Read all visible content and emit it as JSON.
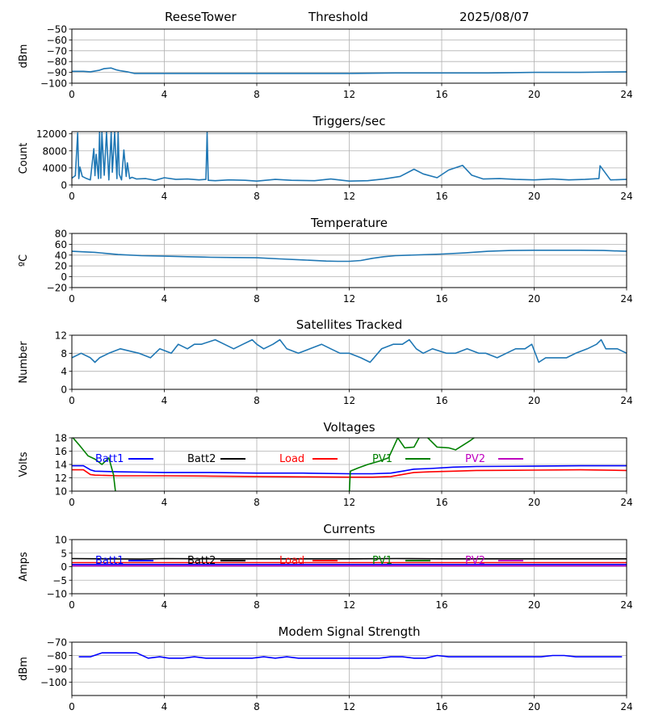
{
  "header": {
    "station": "ReeseTower",
    "label": "Threshold",
    "date": "2025/08/07"
  },
  "colors": {
    "default": "#1f77b4",
    "grid": "#b0b0b0",
    "batt1": "#0000ff",
    "batt2": "#000000",
    "load": "#ff0000",
    "pv1": "#008000",
    "pv2": "#bf00bf"
  },
  "chart_data": [
    {
      "type": "line",
      "title": "",
      "ylabel": "dBm",
      "xlim": [
        0,
        24
      ],
      "ylim": [
        -100,
        -50
      ],
      "xticks": [
        "0",
        "4",
        "8",
        "12",
        "16",
        "20",
        "24"
      ],
      "yticks": [
        "−50",
        "−60",
        "−70",
        "−80",
        "−90",
        "−100"
      ],
      "grid": true,
      "series": [
        {
          "x": [
            0,
            0.5,
            0.8,
            1.2,
            1.4,
            1.7,
            1.9,
            2.1,
            2.4,
            2.7,
            3,
            4,
            6,
            8,
            10,
            12,
            14,
            16,
            18,
            20,
            22,
            24
          ],
          "y": [
            -89,
            -89,
            -89.5,
            -88,
            -86.5,
            -86,
            -87.5,
            -88.5,
            -89.5,
            -91,
            -91,
            -91,
            -91,
            -91,
            -91,
            -91,
            -90.5,
            -90.5,
            -90.5,
            -90,
            -90,
            -89.5
          ]
        }
      ]
    },
    {
      "type": "line",
      "title": "Triggers/sec",
      "ylabel": "Count",
      "xlim": [
        0,
        24
      ],
      "ylim": [
        0,
        12500
      ],
      "xticks": [
        "0",
        "4",
        "8",
        "12",
        "16",
        "20",
        "24"
      ],
      "yticks": [
        "0",
        "4000",
        "8000",
        "12000"
      ],
      "grid": true,
      "series": [
        {
          "x": [
            0,
            0.15,
            0.25,
            0.3,
            0.35,
            0.45,
            0.6,
            0.8,
            0.95,
            1.0,
            1.05,
            1.15,
            1.2,
            1.25,
            1.3,
            1.4,
            1.5,
            1.6,
            1.7,
            1.75,
            1.85,
            1.95,
            2.0,
            2.05,
            2.15,
            2.25,
            2.35,
            2.4,
            2.5,
            2.6,
            2.8,
            3.2,
            3.6,
            4.0,
            4.5,
            5.0,
            5.5,
            5.8,
            5.85,
            5.9,
            6.2,
            6.8,
            7.5,
            8.0,
            8.8,
            9.5,
            10.5,
            11.2,
            12.0,
            12.8,
            13.5,
            14.2,
            14.8,
            15.2,
            15.8,
            16.3,
            16.9,
            17.3,
            17.8,
            18.5,
            19.2,
            20.0,
            20.8,
            21.5,
            22.2,
            22.8,
            22.85,
            23.3,
            24.0
          ],
          "y": [
            1600,
            2200,
            12200,
            1500,
            4200,
            2000,
            1600,
            1200,
            8500,
            2200,
            7200,
            1500,
            12300,
            1600,
            12300,
            2300,
            12300,
            1200,
            12300,
            3000,
            12300,
            1500,
            12300,
            2500,
            1200,
            8200,
            2000,
            5200,
            1500,
            1800,
            1400,
            1500,
            1100,
            1700,
            1300,
            1400,
            1200,
            1300,
            12300,
            1100,
            1000,
            1200,
            1100,
            900,
            1300,
            1100,
            1000,
            1400,
            900,
            1000,
            1400,
            2000,
            3700,
            2600,
            1700,
            3500,
            4600,
            2300,
            1400,
            1500,
            1300,
            1200,
            1400,
            1200,
            1300,
            1500,
            4500,
            1200,
            1300
          ]
        }
      ]
    },
    {
      "type": "line",
      "title": "Temperature",
      "ylabel": "ºC",
      "xlim": [
        0,
        24
      ],
      "ylim": [
        -20,
        80
      ],
      "xticks": [
        "0",
        "4",
        "8",
        "12",
        "16",
        "20",
        "24"
      ],
      "yticks": [
        "−20",
        "0",
        "20",
        "40",
        "60",
        "80"
      ],
      "grid": true,
      "series": [
        {
          "x": [
            0,
            1,
            2,
            3,
            4,
            5,
            6,
            7,
            8,
            9,
            10,
            11,
            11.5,
            12,
            12.5,
            13,
            13.5,
            14,
            15,
            16,
            17,
            18,
            19,
            20,
            21,
            22,
            23,
            24
          ],
          "y": [
            47,
            45,
            41,
            39,
            38,
            37,
            36,
            35.5,
            35,
            33,
            31,
            29,
            28.5,
            28.5,
            30,
            34,
            37,
            39,
            40.5,
            42,
            44,
            47,
            48.5,
            49,
            49,
            49,
            48.5,
            47
          ]
        }
      ]
    },
    {
      "type": "line",
      "title": "Satellites Tracked",
      "ylabel": "Number",
      "xlim": [
        0,
        24
      ],
      "ylim": [
        0,
        12
      ],
      "xticks": [
        "0",
        "4",
        "8",
        "12",
        "16",
        "20",
        "24"
      ],
      "yticks": [
        "0",
        "4",
        "8",
        "12"
      ],
      "grid": true,
      "series": [
        {
          "x": [
            0,
            0.4,
            0.8,
            1.0,
            1.2,
            1.6,
            2.1,
            2.9,
            3.4,
            3.6,
            3.8,
            4.3,
            4.6,
            5.0,
            5.3,
            5.6,
            6.2,
            6.6,
            7.0,
            7.4,
            7.8,
            8.0,
            8.3,
            8.7,
            9.0,
            9.3,
            9.8,
            10.3,
            10.8,
            11.2,
            11.6,
            12.0,
            12.5,
            12.9,
            13.4,
            13.9,
            14.3,
            14.6,
            14.9,
            15.2,
            15.6,
            16.2,
            16.6,
            17.1,
            17.6,
            17.9,
            18.4,
            18.8,
            19.2,
            19.6,
            19.9,
            20.2,
            20.5,
            21.0,
            21.4,
            21.8,
            22.3,
            22.7,
            22.9,
            23.1,
            23.6,
            24.0
          ],
          "y": [
            7,
            8,
            7,
            6,
            7,
            8,
            9,
            8,
            7,
            8,
            9,
            8,
            10,
            9,
            10,
            10,
            11,
            10,
            9,
            10,
            11,
            10,
            9,
            10,
            11,
            9,
            8,
            9,
            10,
            9,
            8,
            8,
            7,
            6,
            9,
            10,
            10,
            11,
            9,
            8,
            9,
            8,
            8,
            9,
            8,
            8,
            7,
            8,
            9,
            9,
            10,
            6,
            7,
            7,
            7,
            8,
            9,
            10,
            11,
            9,
            9,
            8
          ]
        }
      ]
    },
    {
      "type": "line",
      "title": "Voltages",
      "ylabel": "Volts",
      "xlim": [
        0,
        24
      ],
      "ylim": [
        10,
        18
      ],
      "xticks": [
        "0",
        "4",
        "8",
        "12",
        "16",
        "20",
        "24"
      ],
      "yticks": [
        "10",
        "12",
        "14",
        "16",
        "18"
      ],
      "grid": true,
      "legend": "top, single row",
      "series": [
        {
          "name": "Batt1",
          "color": "#0000ff",
          "x": [
            0,
            0.5,
            0.8,
            1.0,
            2,
            4,
            6,
            8,
            10,
            12,
            13,
            13.8,
            14.3,
            14.8,
            15.5,
            16.5,
            17.5,
            20,
            22,
            24
          ],
          "y": [
            13.8,
            13.8,
            13.2,
            13.0,
            12.9,
            12.8,
            12.8,
            12.7,
            12.7,
            12.6,
            12.6,
            12.7,
            13.0,
            13.3,
            13.4,
            13.6,
            13.7,
            13.75,
            13.8,
            13.8
          ]
        },
        {
          "name": "Load",
          "color": "#ff0000",
          "x": [
            0,
            0.5,
            0.8,
            1.0,
            2,
            4,
            6,
            8,
            10,
            12,
            13,
            13.8,
            14.3,
            14.8,
            15.5,
            16.5,
            17.5,
            20,
            22,
            24
          ],
          "y": [
            13.2,
            13.2,
            12.5,
            12.4,
            12.3,
            12.3,
            12.25,
            12.2,
            12.15,
            12.1,
            12.1,
            12.2,
            12.5,
            12.8,
            12.9,
            13.0,
            13.1,
            13.15,
            13.2,
            13.1
          ]
        },
        {
          "name": "PV1",
          "color": "#008000",
          "x": [
            0,
            0.3,
            0.7,
            1.0,
            1.3,
            1.6,
            1.8,
            1.9,
            12.0,
            12.05,
            12.4,
            12.8,
            13.3,
            13.7,
            14.1,
            14.4,
            14.8,
            15.1,
            15.4,
            15.8,
            16.3,
            16.6,
            17.2,
            17.6
          ],
          "y": [
            18.2,
            17.0,
            15.3,
            14.8,
            14.0,
            15.0,
            12.5,
            9.5,
            9.5,
            13.0,
            13.5,
            14.0,
            14.5,
            15.0,
            18.0,
            16.5,
            16.6,
            18.5,
            18.0,
            16.6,
            16.5,
            16.2,
            17.5,
            18.5
          ]
        },
        {
          "name": "Batt2",
          "color": "#000000",
          "x": [],
          "y": []
        },
        {
          "name": "PV2",
          "color": "#bf00bf",
          "x": [],
          "y": []
        }
      ]
    },
    {
      "type": "line",
      "title": "Currents",
      "ylabel": "Amps",
      "xlim": [
        0,
        24
      ],
      "ylim": [
        -10,
        10
      ],
      "xticks": [
        "0",
        "4",
        "8",
        "12",
        "16",
        "20",
        "24"
      ],
      "yticks": [
        "−10",
        "−5",
        "0",
        "5",
        "10"
      ],
      "grid": true,
      "legend": "top, single row",
      "series": [
        {
          "name": "Batt2",
          "color": "#000000",
          "x": [
            0,
            3,
            4,
            6,
            8,
            10,
            12,
            14,
            16,
            20,
            24
          ],
          "y": [
            3.0,
            2.8,
            3.0,
            2.9,
            2.9,
            2.9,
            2.9,
            3.0,
            2.9,
            2.9,
            2.9
          ]
        },
        {
          "name": "Load",
          "color": "#ff0000",
          "x": [
            0,
            24
          ],
          "y": [
            1.5,
            1.5
          ]
        },
        {
          "name": "Batt1",
          "color": "#0000ff",
          "x": [
            0,
            24
          ],
          "y": [
            0.8,
            0.8
          ]
        },
        {
          "name": "PV2",
          "color": "#bf00bf",
          "x": [
            0,
            24
          ],
          "y": [
            0.3,
            0.3
          ]
        },
        {
          "name": "PV1",
          "color": "#008000",
          "x": [],
          "y": []
        }
      ]
    },
    {
      "type": "line",
      "title": "Modem Signal Strength",
      "ylabel": "dBm",
      "xlim": [
        0,
        24
      ],
      "ylim": [
        -110,
        -70
      ],
      "xticks": [
        "0",
        "4",
        "8",
        "12",
        "16",
        "20",
        "24"
      ],
      "yticks": [
        "−70",
        "−80",
        "−90",
        "−100"
      ],
      "grid": true,
      "series": [
        {
          "name": "",
          "color": "#0000ff",
          "x": [
            0.3,
            0.8,
            1.3,
            2.2,
            2.8,
            3.3,
            3.8,
            4.2,
            4.8,
            5.3,
            5.8,
            7.8,
            8.3,
            8.8,
            9.3,
            9.8,
            10.3,
            12.5,
            13.3,
            13.8,
            14.3,
            14.8,
            15.3,
            15.8,
            16.3,
            20.3,
            20.8,
            21.3,
            21.8,
            23.8
          ],
          "y": [
            -81,
            -81,
            -78,
            -78,
            -78,
            -82,
            -81,
            -82,
            -82,
            -81,
            -82,
            -82,
            -81,
            -82,
            -81,
            -82,
            -82,
            -82,
            -82,
            -81,
            -81,
            -82,
            -82,
            -80,
            -81,
            -81,
            -80,
            -80,
            -81,
            -81
          ]
        }
      ]
    }
  ]
}
